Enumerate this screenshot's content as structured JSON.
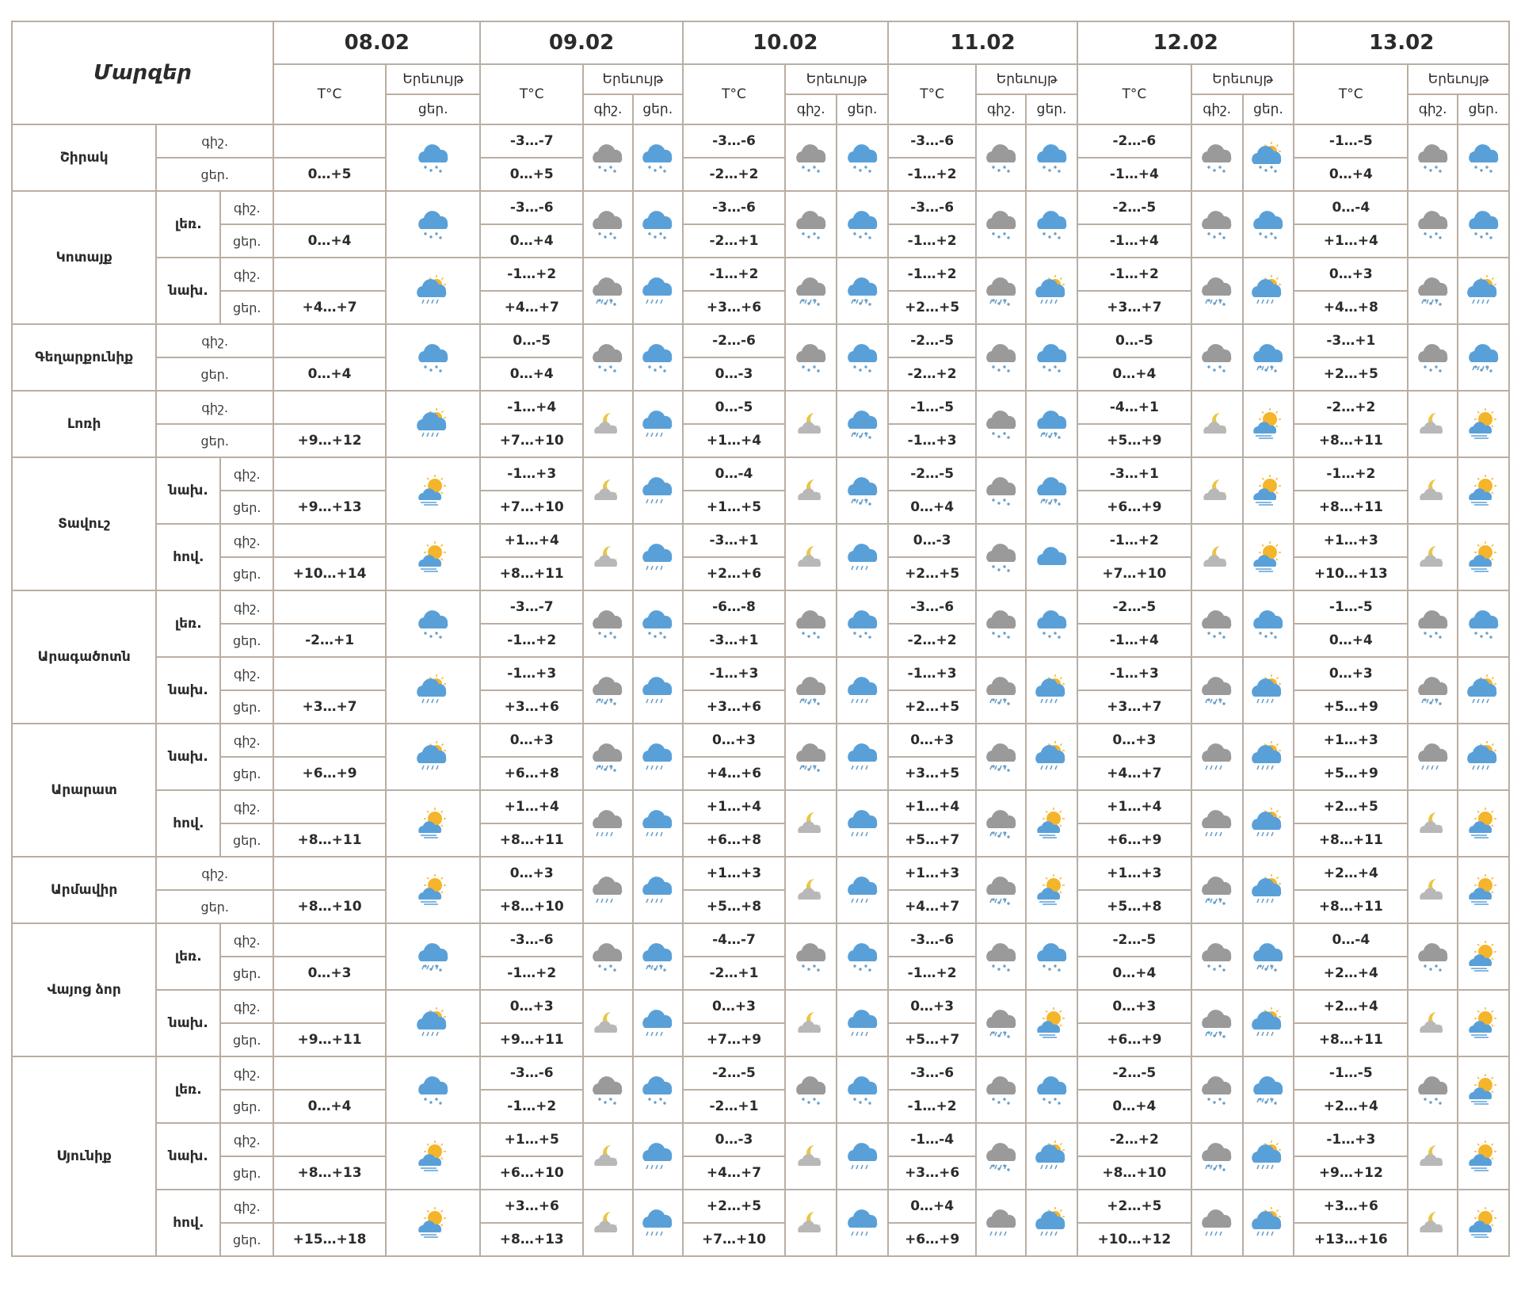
{
  "header": {
    "title": "Մարզեր",
    "t_label": "T°C",
    "weather_label": "Երեւույթ",
    "night": "գիշ.",
    "day": "ցեր."
  },
  "dates": [
    "08.02",
    "09.02",
    "10.02",
    "11.02",
    "12.02",
    "13.02"
  ],
  "regions": [
    {
      "name": "Շիրակ",
      "parts": [
        {
          "name": "",
          "first": {
            "day": "0…+5",
            "icon": "snow"
          },
          "days": [
            {
              "n": "-3…-7",
              "d": "0…+5",
              "in": "cloud-snow",
              "id": "snow"
            },
            {
              "n": "-3…-6",
              "d": "-2…+2",
              "in": "cloud-snow",
              "id": "snow"
            },
            {
              "n": "-3…-6",
              "d": "-1…+2",
              "in": "cloud-snow",
              "id": "snow"
            },
            {
              "n": "-2…-6",
              "d": "-1…+4",
              "in": "cloud-snow",
              "id": "sun-snow"
            },
            {
              "n": "-1…-5",
              "d": "0…+4",
              "in": "cloud-snow",
              "id": "snow"
            }
          ]
        }
      ]
    },
    {
      "name": "Կոտայք",
      "parts": [
        {
          "name": "լեռ.",
          "first": {
            "day": "0…+4",
            "icon": "snow"
          },
          "days": [
            {
              "n": "-3…-6",
              "d": "0…+4",
              "in": "cloud-snow",
              "id": "snow"
            },
            {
              "n": "-3…-6",
              "d": "-2…+1",
              "in": "cloud-snow",
              "id": "snow"
            },
            {
              "n": "-3…-6",
              "d": "-1…+2",
              "in": "cloud-snow",
              "id": "snow"
            },
            {
              "n": "-2…-5",
              "d": "-1…+4",
              "in": "cloud-snow",
              "id": "snow"
            },
            {
              "n": "0…-4",
              "d": "+1…+4",
              "in": "cloud-snow",
              "id": "snow"
            }
          ]
        },
        {
          "name": "նախ.",
          "first": {
            "day": "+4…+7",
            "icon": "sun-rain"
          },
          "days": [
            {
              "n": "-1…+2",
              "d": "+4…+7",
              "in": "cloud-sleet",
              "id": "rain"
            },
            {
              "n": "-1…+2",
              "d": "+3…+6",
              "in": "cloud-sleet",
              "id": "sleet"
            },
            {
              "n": "-1…+2",
              "d": "+2…+5",
              "in": "cloud-sleet",
              "id": "sun-rain"
            },
            {
              "n": "-1…+2",
              "d": "+3…+7",
              "in": "cloud-sleet",
              "id": "sun-rain"
            },
            {
              "n": "0…+3",
              "d": "+4…+8",
              "in": "cloud-sleet",
              "id": "sun-rain"
            }
          ]
        }
      ]
    },
    {
      "name": "Գեղարքունիք",
      "parts": [
        {
          "name": "",
          "first": {
            "day": "0…+4",
            "icon": "snow"
          },
          "days": [
            {
              "n": "0…-5",
              "d": "0…+4",
              "in": "cloud-snow",
              "id": "snow"
            },
            {
              "n": "-2…-6",
              "d": "0…-3",
              "in": "cloud-snow",
              "id": "snow"
            },
            {
              "n": "-2…-5",
              "d": "-2…+2",
              "in": "cloud-snow",
              "id": "snow"
            },
            {
              "n": "0…-5",
              "d": "0…+4",
              "in": "cloud-snow",
              "id": "sleet"
            },
            {
              "n": "-3…+1",
              "d": "+2…+5",
              "in": "cloud-snow",
              "id": "sleet"
            }
          ]
        }
      ]
    },
    {
      "name": "Լոռի",
      "parts": [
        {
          "name": "",
          "first": {
            "day": "+9…+12",
            "icon": "sun-rain"
          },
          "days": [
            {
              "n": "-1…+4",
              "d": "+7…+10",
              "in": "moon-cloud",
              "id": "rain"
            },
            {
              "n": "0…-5",
              "d": "+1…+4",
              "in": "moon-cloud",
              "id": "sleet"
            },
            {
              "n": "-1…-5",
              "d": "-1…+3",
              "in": "cloud-snow",
              "id": "sleet"
            },
            {
              "n": "-4…+1",
              "d": "+5…+9",
              "in": "moon-cloud",
              "id": "sun-cloud"
            },
            {
              "n": "-2…+2",
              "d": "+8…+11",
              "in": "moon-cloud",
              "id": "sun-cloud"
            }
          ]
        }
      ]
    },
    {
      "name": "Տավուշ",
      "parts": [
        {
          "name": "նախ.",
          "first": {
            "day": "+9…+13",
            "icon": "sun-cloud"
          },
          "days": [
            {
              "n": "-1…+3",
              "d": "+7…+10",
              "in": "moon-cloud",
              "id": "rain"
            },
            {
              "n": "0…-4",
              "d": "+1…+5",
              "in": "moon-cloud",
              "id": "sleet"
            },
            {
              "n": "-2…-5",
              "d": "0…+4",
              "in": "cloud-snow",
              "id": "sleet"
            },
            {
              "n": "-3…+1",
              "d": "+6…+9",
              "in": "moon-cloud",
              "id": "sun-cloud"
            },
            {
              "n": "-1…+2",
              "d": "+8…+11",
              "in": "moon-cloud",
              "id": "sun-cloud"
            }
          ]
        },
        {
          "name": "հով.",
          "first": {
            "day": "+10…+14",
            "icon": "sun-cloud"
          },
          "days": [
            {
              "n": "+1…+4",
              "d": "+8…+11",
              "in": "moon-cloud",
              "id": "rain"
            },
            {
              "n": "-3…+1",
              "d": "+2…+6",
              "in": "moon-cloud",
              "id": "rain"
            },
            {
              "n": "0…-3",
              "d": "+2…+5",
              "in": "cloud-snow",
              "id": "cloud"
            },
            {
              "n": "-1…+2",
              "d": "+7…+10",
              "in": "moon-cloud",
              "id": "sun-cloud"
            },
            {
              "n": "+1…+3",
              "d": "+10…+13",
              "in": "moon-cloud",
              "id": "sun-cloud"
            }
          ]
        }
      ]
    },
    {
      "name": "Արագածոտն",
      "parts": [
        {
          "name": "լեռ.",
          "first": {
            "day": "-2…+1",
            "icon": "snow"
          },
          "days": [
            {
              "n": "-3…-7",
              "d": "-1…+2",
              "in": "cloud-snow",
              "id": "snow"
            },
            {
              "n": "-6…-8",
              "d": "-3…+1",
              "in": "cloud-snow",
              "id": "snow"
            },
            {
              "n": "-3…-6",
              "d": "-2…+2",
              "in": "cloud-snow",
              "id": "snow"
            },
            {
              "n": "-2…-5",
              "d": "-1…+4",
              "in": "cloud-snow",
              "id": "snow"
            },
            {
              "n": "-1…-5",
              "d": "0…+4",
              "in": "cloud-snow",
              "id": "snow"
            }
          ]
        },
        {
          "name": "նախ.",
          "first": {
            "day": "+3…+7",
            "icon": "sun-rain"
          },
          "days": [
            {
              "n": "-1…+3",
              "d": "+3…+6",
              "in": "cloud-sleet",
              "id": "rain"
            },
            {
              "n": "-1…+3",
              "d": "+3…+6",
              "in": "cloud-sleet",
              "id": "rain"
            },
            {
              "n": "-1…+3",
              "d": "+2…+5",
              "in": "cloud-sleet",
              "id": "sun-rain"
            },
            {
              "n": "-1…+3",
              "d": "+3…+7",
              "in": "cloud-sleet",
              "id": "sun-rain"
            },
            {
              "n": "0…+3",
              "d": "+5…+9",
              "in": "cloud-sleet",
              "id": "sun-rain"
            }
          ]
        }
      ]
    },
    {
      "name": "Արարատ",
      "parts": [
        {
          "name": "նախ.",
          "first": {
            "day": "+6…+9",
            "icon": "sun-rain"
          },
          "days": [
            {
              "n": "0…+3",
              "d": "+6…+8",
              "in": "cloud-sleet",
              "id": "rain"
            },
            {
              "n": "0…+3",
              "d": "+4…+6",
              "in": "cloud-sleet",
              "id": "rain"
            },
            {
              "n": "0…+3",
              "d": "+3…+5",
              "in": "cloud-sleet",
              "id": "sun-rain"
            },
            {
              "n": "0…+3",
              "d": "+4…+7",
              "in": "cloud-rain",
              "id": "sun-rain"
            },
            {
              "n": "+1…+3",
              "d": "+5…+9",
              "in": "cloud-rain",
              "id": "sun-rain"
            }
          ]
        },
        {
          "name": "հով.",
          "first": {
            "day": "+8…+11",
            "icon": "sun-cloud"
          },
          "days": [
            {
              "n": "+1…+4",
              "d": "+8…+11",
              "in": "cloud-rain",
              "id": "rain"
            },
            {
              "n": "+1…+4",
              "d": "+6…+8",
              "in": "moon-cloud",
              "id": "rain"
            },
            {
              "n": "+1…+4",
              "d": "+5…+7",
              "in": "cloud-sleet",
              "id": "sun-cloud"
            },
            {
              "n": "+1…+4",
              "d": "+6…+9",
              "in": "cloud-rain",
              "id": "sun-rain"
            },
            {
              "n": "+2…+5",
              "d": "+8…+11",
              "in": "moon-cloud",
              "id": "sun-cloud"
            }
          ]
        }
      ]
    },
    {
      "name": "Արմավիր",
      "parts": [
        {
          "name": "",
          "first": {
            "day": "+8…+10",
            "icon": "sun-cloud"
          },
          "days": [
            {
              "n": "0…+3",
              "d": "+8…+10",
              "in": "cloud-rain",
              "id": "rain"
            },
            {
              "n": "+1…+3",
              "d": "+5…+8",
              "in": "moon-cloud",
              "id": "rain"
            },
            {
              "n": "+1…+3",
              "d": "+4…+7",
              "in": "cloud-sleet",
              "id": "sun-cloud"
            },
            {
              "n": "+1…+3",
              "d": "+5…+8",
              "in": "cloud-sleet",
              "id": "sun-rain"
            },
            {
              "n": "+2…+4",
              "d": "+8…+11",
              "in": "moon-cloud",
              "id": "sun-cloud"
            }
          ]
        }
      ]
    },
    {
      "name": "Վայոց ձոր",
      "parts": [
        {
          "name": "լեռ.",
          "first": {
            "day": "0…+3",
            "icon": "sleet"
          },
          "days": [
            {
              "n": "-3…-6",
              "d": "-1…+2",
              "in": "cloud-snow",
              "id": "sleet"
            },
            {
              "n": "-4…-7",
              "d": "-2…+1",
              "in": "cloud-snow",
              "id": "snow"
            },
            {
              "n": "-3…-6",
              "d": "-1…+2",
              "in": "cloud-snow",
              "id": "snow"
            },
            {
              "n": "-2…-5",
              "d": "0…+4",
              "in": "cloud-snow",
              "id": "sleet"
            },
            {
              "n": "0…-4",
              "d": "+2…+4",
              "in": "cloud-snow",
              "id": "sun-cloud"
            }
          ]
        },
        {
          "name": "նախ.",
          "first": {
            "day": "+9…+11",
            "icon": "sun-rain"
          },
          "days": [
            {
              "n": "0…+3",
              "d": "+9…+11",
              "in": "moon-cloud",
              "id": "rain"
            },
            {
              "n": "0…+3",
              "d": "+7…+9",
              "in": "moon-cloud",
              "id": "rain"
            },
            {
              "n": "0…+3",
              "d": "+5…+7",
              "in": "cloud-sleet",
              "id": "sun-cloud"
            },
            {
              "n": "0…+3",
              "d": "+6…+9",
              "in": "cloud-sleet",
              "id": "sun-rain"
            },
            {
              "n": "+2…+4",
              "d": "+8…+11",
              "in": "moon-cloud",
              "id": "sun-cloud"
            }
          ]
        }
      ]
    },
    {
      "name": "Սյունիք",
      "parts": [
        {
          "name": "լեռ.",
          "first": {
            "day": "0…+4",
            "icon": "snow"
          },
          "days": [
            {
              "n": "-3…-6",
              "d": "-1…+2",
              "in": "cloud-snow",
              "id": "snow"
            },
            {
              "n": "-2…-5",
              "d": "-2…+1",
              "in": "cloud-snow",
              "id": "snow"
            },
            {
              "n": "-3…-6",
              "d": "-1…+2",
              "in": "cloud-snow",
              "id": "snow"
            },
            {
              "n": "-2…-5",
              "d": "0…+4",
              "in": "cloud-snow",
              "id": "sleet"
            },
            {
              "n": "-1…-5",
              "d": "+2…+4",
              "in": "cloud-snow",
              "id": "sun-cloud"
            }
          ]
        },
        {
          "name": "նախ.",
          "first": {
            "day": "+8…+13",
            "icon": "sun-cloud"
          },
          "days": [
            {
              "n": "+1…+5",
              "d": "+6…+10",
              "in": "moon-cloud",
              "id": "rain"
            },
            {
              "n": "0…-3",
              "d": "+4…+7",
              "in": "moon-cloud",
              "id": "rain"
            },
            {
              "n": "-1…-4",
              "d": "+3…+6",
              "in": "cloud-sleet",
              "id": "sun-rain"
            },
            {
              "n": "-2…+2",
              "d": "+8…+10",
              "in": "cloud-sleet",
              "id": "sun-rain"
            },
            {
              "n": "-1…+3",
              "d": "+9…+12",
              "in": "moon-cloud",
              "id": "sun-cloud"
            }
          ]
        },
        {
          "name": "հով.",
          "first": {
            "day": "+15…+18",
            "icon": "sun-cloud"
          },
          "days": [
            {
              "n": "+3…+6",
              "d": "+8…+13",
              "in": "moon-cloud",
              "id": "rain"
            },
            {
              "n": "+2…+5",
              "d": "+7…+10",
              "in": "moon-cloud",
              "id": "rain"
            },
            {
              "n": "0…+4",
              "d": "+6…+9",
              "in": "cloud-rain",
              "id": "sun-rain"
            },
            {
              "n": "+2…+5",
              "d": "+10…+12",
              "in": "cloud-rain",
              "id": "sun-rain"
            },
            {
              "n": "+3…+6",
              "d": "+13…+16",
              "in": "moon-cloud",
              "id": "sun-cloud"
            }
          ]
        }
      ]
    }
  ]
}
